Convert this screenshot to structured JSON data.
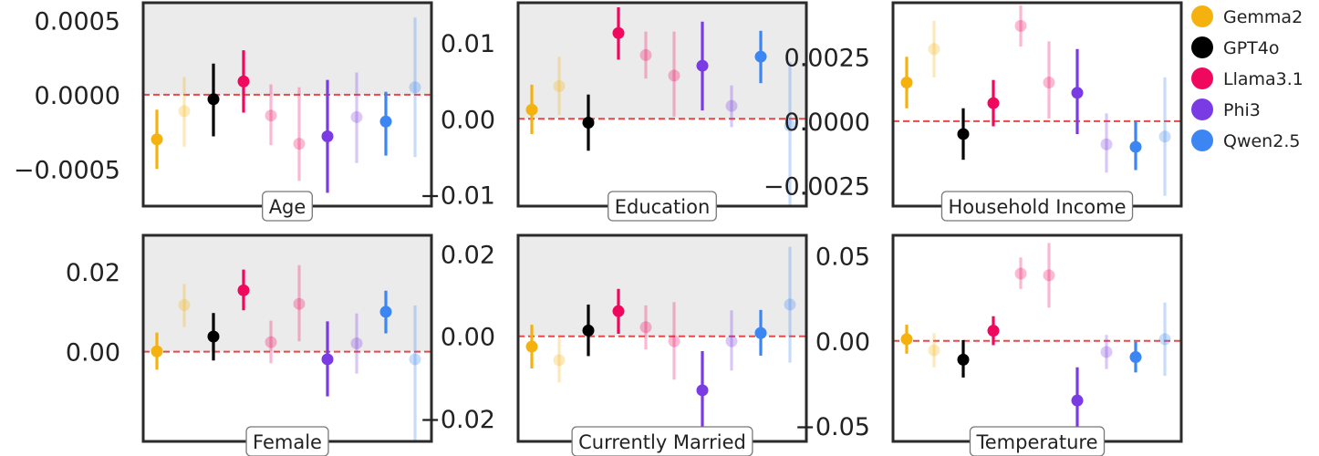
{
  "legend": [
    {
      "name": "Gemma2",
      "color": "#F5B20E"
    },
    {
      "name": "GPT4o",
      "color": "#000000"
    },
    {
      "name": "Llama3.1",
      "color": "#F0085F"
    },
    {
      "name": "Phi3",
      "color": "#7B3BE4"
    },
    {
      "name": "Qwen2.5",
      "color": "#3B86F3"
    }
  ],
  "colors": {
    "shaded_region": "#EBEBEB",
    "reference_line": "#E84848",
    "frame": "#2A2A2A"
  },
  "chart_data": [
    {
      "type": "scatter",
      "title": "Age",
      "ylim": [
        -0.00075,
        0.00062
      ],
      "yticks": [
        0.0005,
        0.0,
        -0.0005
      ],
      "yticklabels": [
        "0.0005",
        "0.0000",
        "−0.0005"
      ],
      "shaded_above_zero": true,
      "series": [
        {
          "name": "Gemma2",
          "points": [
            {
              "y": -0.0003,
              "low": -0.0005,
              "high": -0.0001
            },
            {
              "y": -0.00011,
              "low": -0.00035,
              "high": 0.00012
            }
          ]
        },
        {
          "name": "GPT4o",
          "points": [
            {
              "y": -3e-05,
              "low": -0.00028,
              "high": 0.00021
            }
          ]
        },
        {
          "name": "Llama3.1",
          "points": [
            {
              "y": 9e-05,
              "low": -0.00012,
              "high": 0.0003
            },
            {
              "y": -0.00014,
              "low": -0.00034,
              "high": 7e-05
            },
            {
              "y": -0.00033,
              "low": -0.00058,
              "high": 5e-05
            }
          ]
        },
        {
          "name": "Phi3",
          "points": [
            {
              "y": -0.00028,
              "low": -0.00066,
              "high": 0.0001
            },
            {
              "y": -0.00015,
              "low": -0.00046,
              "high": 0.00015
            }
          ]
        },
        {
          "name": "Qwen2.5",
          "points": [
            {
              "y": -0.00018,
              "low": -0.00041,
              "high": 2e-05
            },
            {
              "y": 5e-05,
              "low": -0.00042,
              "high": 0.00052
            }
          ]
        }
      ]
    },
    {
      "type": "scatter",
      "title": "Education",
      "ylim": [
        -0.0115,
        0.0153
      ],
      "yticks": [
        0.01,
        0.0,
        -0.01
      ],
      "yticklabels": [
        "0.01",
        "0.00",
        "−0.01"
      ],
      "shaded_above_zero": true,
      "series": [
        {
          "name": "Gemma2",
          "points": [
            {
              "y": 0.0012,
              "low": -0.002,
              "high": 0.0045
            },
            {
              "y": 0.0043,
              "low": 0.0005,
              "high": 0.0082
            }
          ]
        },
        {
          "name": "GPT4o",
          "points": [
            {
              "y": -0.0005,
              "low": -0.0042,
              "high": 0.0032
            }
          ]
        },
        {
          "name": "Llama3.1",
          "points": [
            {
              "y": 0.0113,
              "low": 0.0078,
              "high": 0.0147
            },
            {
              "y": 0.0084,
              "low": 0.0053,
              "high": 0.0115
            },
            {
              "y": 0.0057,
              "low": 0.0003,
              "high": 0.0115
            }
          ]
        },
        {
          "name": "Phi3",
          "points": [
            {
              "y": 0.007,
              "low": 0.0011,
              "high": 0.0128
            },
            {
              "y": 0.0017,
              "low": -0.0011,
              "high": 0.0044
            }
          ]
        },
        {
          "name": "Qwen2.5",
          "points": [
            {
              "y": 0.0082,
              "low": 0.0047,
              "high": 0.0116
            },
            {
              "y": -0.0009,
              "low": -0.0115,
              "high": 0.0075
            }
          ]
        }
      ]
    },
    {
      "type": "scatter",
      "title": "Household Income",
      "ylim": [
        -0.0033,
        0.0046
      ],
      "yticks": [
        0.0025,
        0.0,
        -0.0025
      ],
      "yticklabels": [
        "0.0025",
        "0.0000",
        "−0.0025"
      ],
      "shaded_above_zero": false,
      "series": [
        {
          "name": "Gemma2",
          "points": [
            {
              "y": 0.0015,
              "low": 0.0005,
              "high": 0.0025
            },
            {
              "y": 0.0028,
              "low": 0.0017,
              "high": 0.0039
            }
          ]
        },
        {
          "name": "GPT4o",
          "points": [
            {
              "y": -0.0005,
              "low": -0.0015,
              "high": 0.0005
            }
          ]
        },
        {
          "name": "Llama3.1",
          "points": [
            {
              "y": 0.0007,
              "low": -0.0002,
              "high": 0.0016
            },
            {
              "y": 0.0037,
              "low": 0.0029,
              "high": 0.0045
            },
            {
              "y": 0.0015,
              "low": 0.0001,
              "high": 0.0031
            }
          ]
        },
        {
          "name": "Phi3",
          "points": [
            {
              "y": 0.0011,
              "low": -0.0005,
              "high": 0.0028
            },
            {
              "y": -0.0009,
              "low": -0.002,
              "high": 0.0003
            }
          ]
        },
        {
          "name": "Qwen2.5",
          "points": [
            {
              "y": -0.001,
              "low": -0.0019,
              "high": 0.0
            },
            {
              "y": -0.0006,
              "low": -0.0029,
              "high": 0.0017
            }
          ]
        }
      ]
    },
    {
      "type": "scatter",
      "title": "Female",
      "ylim": [
        -0.0225,
        0.0292
      ],
      "yticks": [
        0.02,
        0.0
      ],
      "yticklabels": [
        "0.02",
        "0.00"
      ],
      "shaded_above_zero": true,
      "series": [
        {
          "name": "Gemma2",
          "points": [
            {
              "y": 0.0001,
              "low": -0.0045,
              "high": 0.0048
            },
            {
              "y": 0.0117,
              "low": 0.0062,
              "high": 0.017
            }
          ]
        },
        {
          "name": "GPT4o",
          "points": [
            {
              "y": 0.0038,
              "low": -0.0022,
              "high": 0.0097
            }
          ]
        },
        {
          "name": "Llama3.1",
          "points": [
            {
              "y": 0.0154,
              "low": 0.0104,
              "high": 0.0206
            },
            {
              "y": 0.0024,
              "low": -0.0029,
              "high": 0.0078
            },
            {
              "y": 0.012,
              "low": 0.0026,
              "high": 0.0217
            }
          ]
        },
        {
          "name": "Phi3",
          "points": [
            {
              "y": -0.0019,
              "low": -0.0112,
              "high": 0.0076
            },
            {
              "y": 0.0021,
              "low": -0.0055,
              "high": 0.0096
            }
          ]
        },
        {
          "name": "Qwen2.5",
          "points": [
            {
              "y": 0.01,
              "low": 0.0046,
              "high": 0.0153
            },
            {
              "y": -0.0019,
              "low": -0.0224,
              "high": 0.0116
            }
          ]
        }
      ]
    },
    {
      "type": "scatter",
      "title": "Currently Married",
      "ylim": [
        -0.0255,
        0.0245
      ],
      "yticks": [
        0.02,
        0.0,
        -0.02
      ],
      "yticklabels": [
        "0.02",
        "0.00",
        "−0.02"
      ],
      "shaded_above_zero": true,
      "series": [
        {
          "name": "Gemma2",
          "points": [
            {
              "y": -0.0025,
              "low": -0.0078,
              "high": 0.0028
            },
            {
              "y": -0.0058,
              "low": -0.0112,
              "high": -0.0003
            }
          ]
        },
        {
          "name": "GPT4o",
          "points": [
            {
              "y": 0.0014,
              "low": -0.0048,
              "high": 0.0077
            }
          ]
        },
        {
          "name": "Llama3.1",
          "points": [
            {
              "y": 0.0061,
              "low": 0.0006,
              "high": 0.0115
            },
            {
              "y": 0.0022,
              "low": -0.0032,
              "high": 0.0075
            },
            {
              "y": -0.0012,
              "low": -0.0105,
              "high": 0.0083
            }
          ]
        },
        {
          "name": "Phi3",
          "points": [
            {
              "y": -0.0131,
              "low": -0.0235,
              "high": -0.0036
            },
            {
              "y": -0.0012,
              "low": -0.0083,
              "high": 0.0063
            }
          ]
        },
        {
          "name": "Qwen2.5",
          "points": [
            {
              "y": 0.0008,
              "low": -0.0047,
              "high": 0.0064
            },
            {
              "y": 0.0077,
              "low": -0.0064,
              "high": 0.0217
            }
          ]
        }
      ]
    },
    {
      "type": "scatter",
      "title": "Temperature",
      "ylim": [
        -0.059,
        0.062
      ],
      "yticks": [
        0.05,
        0.0,
        -0.05
      ],
      "yticklabels": [
        "0.05",
        "0.00",
        "−0.05"
      ],
      "shaded_above_zero": false,
      "series": [
        {
          "name": "Gemma2",
          "points": [
            {
              "y": 0.001,
              "low": -0.0075,
              "high": 0.0095
            },
            {
              "y": -0.0055,
              "low": -0.0155,
              "high": 0.0045
            }
          ]
        },
        {
          "name": "GPT4o",
          "points": [
            {
              "y": -0.011,
              "low": -0.0215,
              "high": 0.0005
            }
          ]
        },
        {
          "name": "Llama3.1",
          "points": [
            {
              "y": 0.006,
              "low": -0.0025,
              "high": 0.0145
            },
            {
              "y": 0.0395,
              "low": 0.0305,
              "high": 0.049
            },
            {
              "y": 0.0385,
              "low": 0.0195,
              "high": 0.0575
            }
          ]
        },
        {
          "name": "Phi3",
          "points": [
            {
              "y": -0.035,
              "low": -0.0545,
              "high": -0.0155
            },
            {
              "y": -0.0065,
              "low": -0.0165,
              "high": 0.0035
            }
          ]
        },
        {
          "name": "Qwen2.5",
          "points": [
            {
              "y": -0.0095,
              "low": -0.0185,
              "high": -0.0005
            },
            {
              "y": 0.001,
              "low": -0.0205,
              "high": 0.0225
            }
          ]
        }
      ]
    }
  ]
}
